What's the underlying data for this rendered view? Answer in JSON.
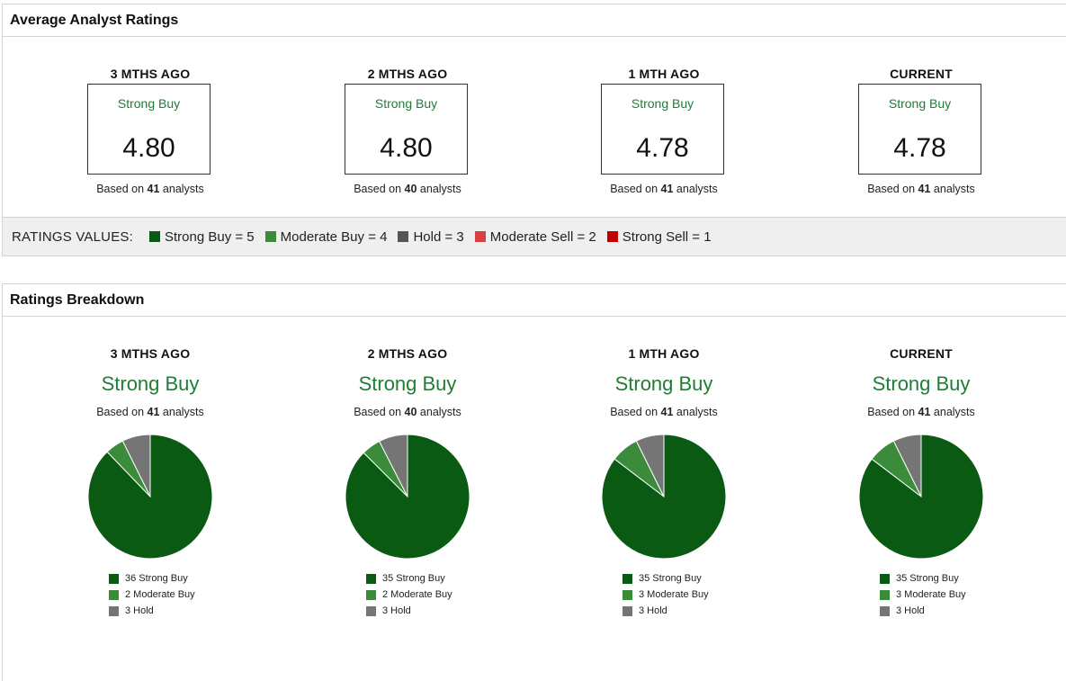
{
  "colors": {
    "strong_buy": "#0b5a14",
    "moderate_buy": "#3a8c3a",
    "hold": "#757575",
    "moderate_sell": "#e04848",
    "strong_sell": "#c00000",
    "rating_text": "#1e7e34"
  },
  "average_panel": {
    "title": "Average Analyst Ratings",
    "periods": [
      {
        "label": "3 MTHS AGO",
        "rating": "Strong Buy",
        "score": "4.80",
        "based_prefix": "Based on",
        "analysts": "41",
        "based_suffix": "analysts"
      },
      {
        "label": "2 MTHS AGO",
        "rating": "Strong Buy",
        "score": "4.80",
        "based_prefix": "Based on",
        "analysts": "40",
        "based_suffix": "analysts"
      },
      {
        "label": "1 MTH AGO",
        "rating": "Strong Buy",
        "score": "4.78",
        "based_prefix": "Based on",
        "analysts": "41",
        "based_suffix": "analysts"
      },
      {
        "label": "CURRENT",
        "rating": "Strong Buy",
        "score": "4.78",
        "based_prefix": "Based on",
        "analysts": "41",
        "based_suffix": "analysts"
      }
    ],
    "ratings_values": {
      "title": "RATINGS VALUES:",
      "items": [
        {
          "label": "Strong Buy = 5",
          "color": "#0b5a14"
        },
        {
          "label": "Moderate Buy = 4",
          "color": "#3a8c3a"
        },
        {
          "label": "Hold = 3",
          "color": "#555555"
        },
        {
          "label": "Moderate Sell = 2",
          "color": "#d94040"
        },
        {
          "label": "Strong Sell = 1",
          "color": "#c00000"
        }
      ]
    }
  },
  "breakdown_panel": {
    "title": "Ratings Breakdown"
  },
  "chart_data": [
    {
      "type": "pie",
      "title": "3 MTHS AGO",
      "subtitle": "Strong Buy",
      "note": "Based on 41 analysts",
      "based_prefix": "Based on",
      "analysts": "41",
      "based_suffix": "analysts",
      "categories": [
        "Strong Buy",
        "Moderate Buy",
        "Hold"
      ],
      "values": [
        36,
        2,
        3
      ],
      "legend": [
        "36 Strong Buy",
        "2 Moderate Buy",
        "3 Hold"
      ]
    },
    {
      "type": "pie",
      "title": "2 MTHS AGO",
      "subtitle": "Strong Buy",
      "note": "Based on 40 analysts",
      "based_prefix": "Based on",
      "analysts": "40",
      "based_suffix": "analysts",
      "categories": [
        "Strong Buy",
        "Moderate Buy",
        "Hold"
      ],
      "values": [
        35,
        2,
        3
      ],
      "legend": [
        "35 Strong Buy",
        "2 Moderate Buy",
        "3 Hold"
      ]
    },
    {
      "type": "pie",
      "title": "1 MTH AGO",
      "subtitle": "Strong Buy",
      "note": "Based on 41 analysts",
      "based_prefix": "Based on",
      "analysts": "41",
      "based_suffix": "analysts",
      "categories": [
        "Strong Buy",
        "Moderate Buy",
        "Hold"
      ],
      "values": [
        35,
        3,
        3
      ],
      "legend": [
        "35 Strong Buy",
        "3 Moderate Buy",
        "3 Hold"
      ]
    },
    {
      "type": "pie",
      "title": "CURRENT",
      "subtitle": "Strong Buy",
      "note": "Based on 41 analysts",
      "based_prefix": "Based on",
      "analysts": "41",
      "based_suffix": "analysts",
      "categories": [
        "Strong Buy",
        "Moderate Buy",
        "Hold"
      ],
      "values": [
        35,
        3,
        3
      ],
      "legend": [
        "35 Strong Buy",
        "3 Moderate Buy",
        "3 Hold"
      ]
    }
  ]
}
